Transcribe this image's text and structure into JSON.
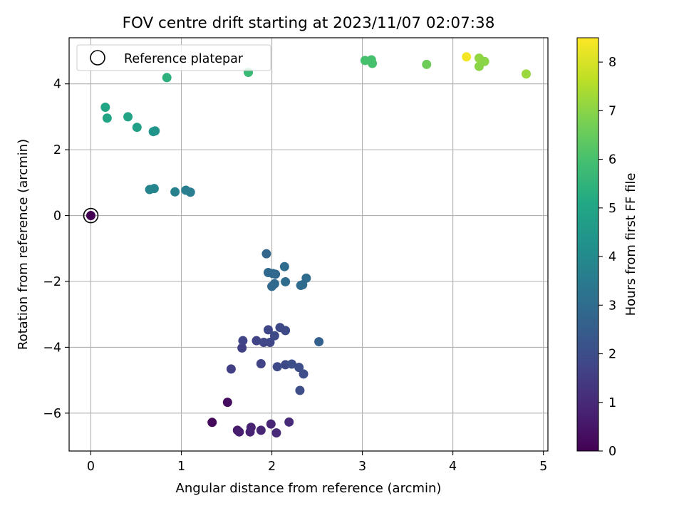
{
  "chart_data": {
    "type": "scatter",
    "title": "FOV centre drift starting at 2023/11/07 02:07:38",
    "xlabel": "Angular distance from reference (arcmin)",
    "ylabel": "Rotation from reference (arcmin)",
    "xlim": [
      -0.24,
      5.05
    ],
    "ylim": [
      -7.15,
      5.4
    ],
    "xticks": [
      0,
      1,
      2,
      3,
      4,
      5
    ],
    "xtick_labels": [
      "0",
      "1",
      "2",
      "3",
      "4",
      "5"
    ],
    "yticks": [
      -6,
      -4,
      -2,
      0,
      2,
      4
    ],
    "ytick_labels": [
      "−6",
      "−4",
      "−2",
      "0",
      "2",
      "4"
    ],
    "grid": true,
    "legend": {
      "position": "upper-left",
      "entries": [
        "Reference platepar"
      ]
    },
    "reference_point": {
      "x": 0,
      "y": 0
    },
    "colorbar": {
      "label": "Hours from first FF file",
      "colormap": "viridis",
      "min": 0,
      "max": 8.5,
      "ticks": [
        0,
        1,
        2,
        3,
        4,
        5,
        6,
        7,
        8
      ],
      "tick_labels": [
        "0",
        "1",
        "2",
        "3",
        "4",
        "5",
        "6",
        "7",
        "8"
      ]
    },
    "points": [
      {
        "x": 0.0,
        "y": 0.0,
        "c": 0.0
      },
      {
        "x": 1.34,
        "y": -6.28,
        "c": 0.2
      },
      {
        "x": 1.51,
        "y": -5.67,
        "c": 0.3
      },
      {
        "x": 1.62,
        "y": -6.52,
        "c": 0.6
      },
      {
        "x": 1.64,
        "y": -6.57,
        "c": 0.7
      },
      {
        "x": 1.76,
        "y": -6.57,
        "c": 0.8
      },
      {
        "x": 1.77,
        "y": -6.43,
        "c": 0.8
      },
      {
        "x": 1.88,
        "y": -6.52,
        "c": 0.9
      },
      {
        "x": 1.99,
        "y": -6.33,
        "c": 0.9
      },
      {
        "x": 2.05,
        "y": -6.6,
        "c": 1.0
      },
      {
        "x": 2.19,
        "y": -6.27,
        "c": 1.0
      },
      {
        "x": 1.55,
        "y": -4.66,
        "c": 1.6
      },
      {
        "x": 1.67,
        "y": -4.02,
        "c": 1.6
      },
      {
        "x": 1.68,
        "y": -3.8,
        "c": 1.7
      },
      {
        "x": 1.83,
        "y": -3.8,
        "c": 1.7
      },
      {
        "x": 1.88,
        "y": -4.5,
        "c": 1.7
      },
      {
        "x": 1.91,
        "y": -3.85,
        "c": 1.8
      },
      {
        "x": 1.96,
        "y": -3.47,
        "c": 1.8
      },
      {
        "x": 1.98,
        "y": -3.85,
        "c": 1.8
      },
      {
        "x": 2.03,
        "y": -3.65,
        "c": 1.9
      },
      {
        "x": 2.06,
        "y": -4.59,
        "c": 1.9
      },
      {
        "x": 2.09,
        "y": -3.4,
        "c": 1.9
      },
      {
        "x": 2.15,
        "y": -3.49,
        "c": 1.9
      },
      {
        "x": 2.15,
        "y": -4.53,
        "c": 1.9
      },
      {
        "x": 2.22,
        "y": -4.51,
        "c": 2.0
      },
      {
        "x": 2.3,
        "y": -4.61,
        "c": 2.0
      },
      {
        "x": 2.31,
        "y": -5.31,
        "c": 2.0
      },
      {
        "x": 2.35,
        "y": -4.81,
        "c": 2.0
      },
      {
        "x": 2.52,
        "y": -3.83,
        "c": 2.6
      },
      {
        "x": 1.94,
        "y": -1.16,
        "c": 2.8
      },
      {
        "x": 1.96,
        "y": -1.73,
        "c": 2.9
      },
      {
        "x": 2.01,
        "y": -1.76,
        "c": 2.9
      },
      {
        "x": 2.04,
        "y": -1.78,
        "c": 2.9
      },
      {
        "x": 2.03,
        "y": -2.07,
        "c": 2.9
      },
      {
        "x": 2.0,
        "y": -2.15,
        "c": 2.9
      },
      {
        "x": 2.14,
        "y": -1.55,
        "c": 3.0
      },
      {
        "x": 2.15,
        "y": -2.01,
        "c": 3.0
      },
      {
        "x": 2.32,
        "y": -2.12,
        "c": 3.0
      },
      {
        "x": 2.34,
        "y": -2.1,
        "c": 3.0
      },
      {
        "x": 2.38,
        "y": -1.9,
        "c": 3.0
      },
      {
        "x": 0.65,
        "y": 0.79,
        "c": 3.8
      },
      {
        "x": 0.7,
        "y": 0.82,
        "c": 3.8
      },
      {
        "x": 0.93,
        "y": 0.72,
        "c": 3.7
      },
      {
        "x": 1.05,
        "y": 0.77,
        "c": 3.6
      },
      {
        "x": 1.1,
        "y": 0.71,
        "c": 3.6
      },
      {
        "x": 0.69,
        "y": 2.55,
        "c": 4.4
      },
      {
        "x": 0.71,
        "y": 2.57,
        "c": 4.4
      },
      {
        "x": 0.51,
        "y": 2.68,
        "c": 4.8
      },
      {
        "x": 0.41,
        "y": 3.0,
        "c": 4.9
      },
      {
        "x": 0.18,
        "y": 2.96,
        "c": 5.0
      },
      {
        "x": 0.16,
        "y": 3.29,
        "c": 5.0
      },
      {
        "x": 0.84,
        "y": 4.19,
        "c": 5.4
      },
      {
        "x": 1.74,
        "y": 4.35,
        "c": 5.7
      },
      {
        "x": 3.03,
        "y": 4.71,
        "c": 6.0
      },
      {
        "x": 3.1,
        "y": 4.73,
        "c": 6.0
      },
      {
        "x": 3.11,
        "y": 4.62,
        "c": 6.0
      },
      {
        "x": 3.71,
        "y": 4.59,
        "c": 6.6
      },
      {
        "x": 4.29,
        "y": 4.53,
        "c": 7.0
      },
      {
        "x": 4.29,
        "y": 4.78,
        "c": 7.1
      },
      {
        "x": 4.35,
        "y": 4.68,
        "c": 7.0
      },
      {
        "x": 4.81,
        "y": 4.3,
        "c": 7.2
      },
      {
        "x": 4.15,
        "y": 4.82,
        "c": 8.4
      }
    ]
  }
}
